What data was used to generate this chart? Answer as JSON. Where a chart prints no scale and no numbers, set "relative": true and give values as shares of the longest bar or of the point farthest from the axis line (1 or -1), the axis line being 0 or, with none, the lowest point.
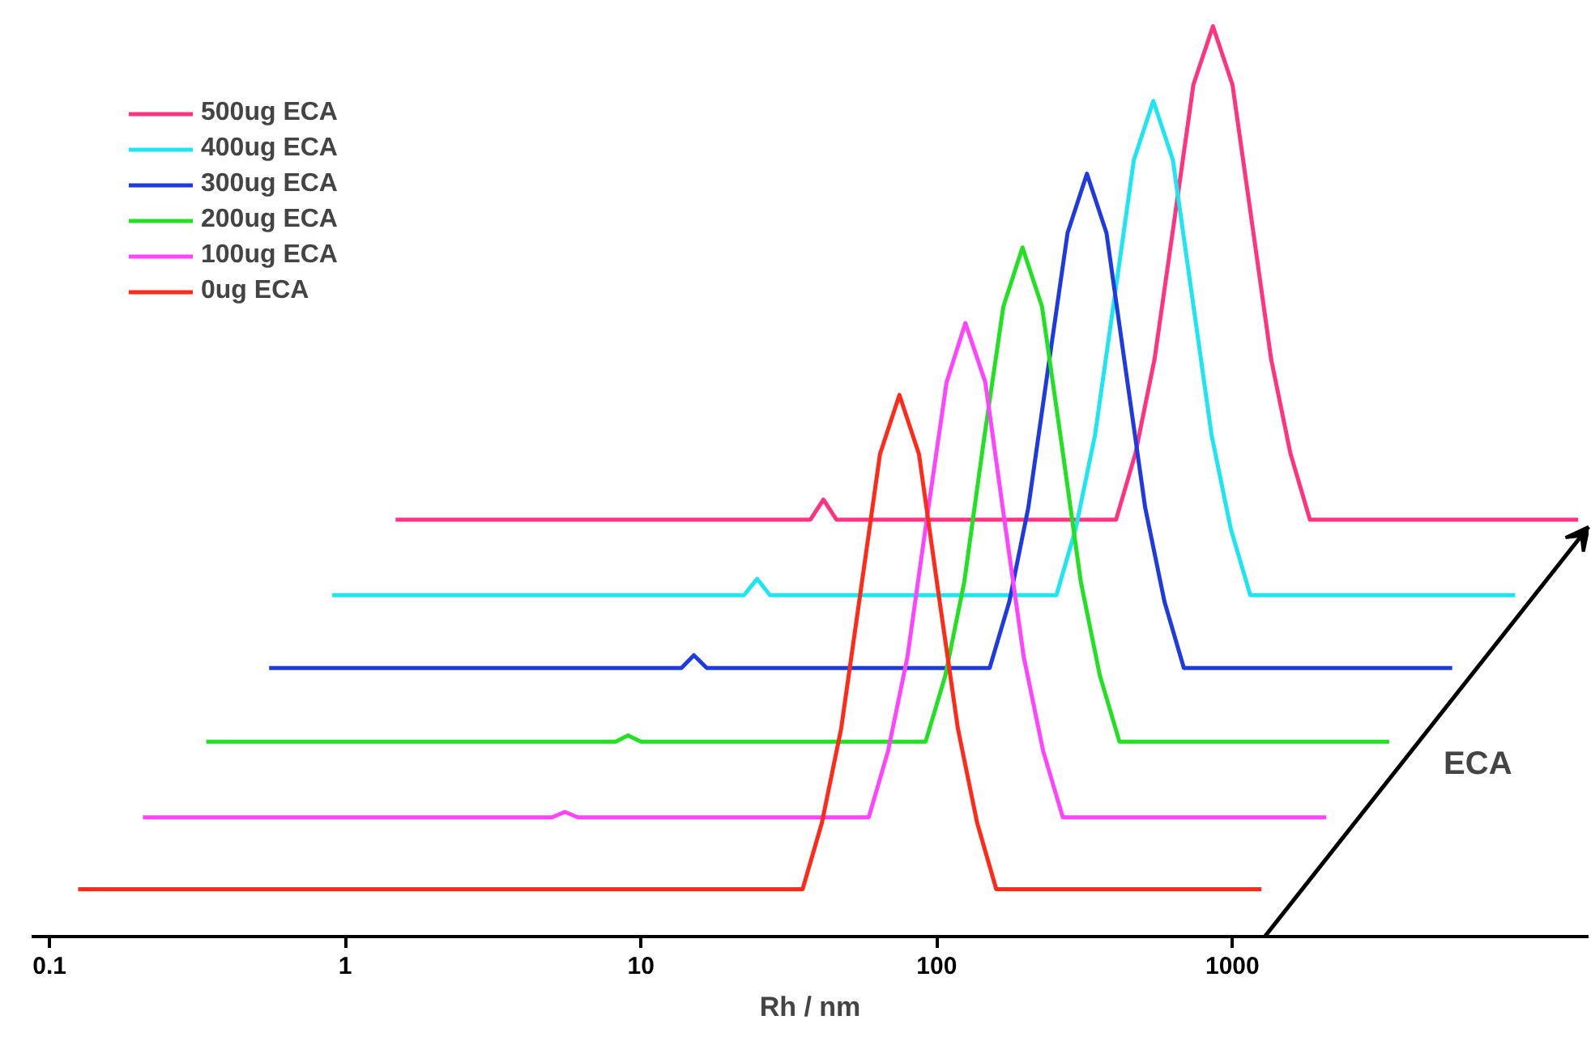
{
  "chart_data": {
    "type": "line",
    "relative": true,
    "xlabel": "Rh / nm",
    "log": "x",
    "xlim": [
      0.087,
      16000
    ],
    "xticks": [
      0.1,
      1,
      10,
      100,
      1000
    ],
    "grid": false,
    "legend": "top left",
    "marker": "none",
    "line_style": "solid",
    "annotations": [
      "ECA"
    ],
    "series": [
      {
        "name": "500ug ECA",
        "color": "#ff3380",
        "x": [
          1.48,
          37.4,
          41.4,
          45.8,
          404,
          470,
          545,
          636,
          738,
          859,
          1000,
          1161,
          1352,
          1570,
          1828,
          14760
        ],
        "values": [
          0.458,
          0.458,
          0.48,
          0.458,
          0.458,
          0.531,
          0.634,
          0.787,
          0.936,
          1.0,
          0.936,
          0.787,
          0.634,
          0.531,
          0.458,
          0.458
        ]
      },
      {
        "name": "400ug ECA",
        "color": "#1ee6f0",
        "x": [
          0.904,
          22.3,
          24.7,
          27.3,
          254,
          295,
          343,
          400,
          464,
          540,
          629,
          730,
          850,
          987,
          1149,
          9036
        ],
        "values": [
          0.375,
          0.375,
          0.393,
          0.375,
          0.375,
          0.448,
          0.551,
          0.704,
          0.853,
          0.918,
          0.853,
          0.704,
          0.551,
          0.448,
          0.375,
          0.375
        ]
      },
      {
        "name": "300ug ECA",
        "color": "#1f3be0",
        "x": [
          0.553,
          13.7,
          15.1,
          16.7,
          151,
          176,
          204,
          238,
          277,
          322,
          375,
          435,
          507,
          589,
          685,
          5534
        ],
        "values": [
          0.295,
          0.295,
          0.309,
          0.295,
          0.295,
          0.368,
          0.471,
          0.624,
          0.773,
          0.838,
          0.773,
          0.624,
          0.471,
          0.368,
          0.295,
          0.295
        ]
      },
      {
        "name": "200ug ECA",
        "color": "#22e022",
        "x": [
          0.339,
          8.2,
          9.04,
          10.0,
          91.7,
          107,
          124,
          144,
          168,
          195,
          227,
          264,
          307,
          356,
          415,
          3388
        ],
        "values": [
          0.214,
          0.214,
          0.221,
          0.214,
          0.214,
          0.287,
          0.39,
          0.543,
          0.692,
          0.757,
          0.692,
          0.543,
          0.39,
          0.287,
          0.214,
          0.214
        ]
      },
      {
        "name": "100ug ECA",
        "color": "#ff44ff",
        "x": [
          0.207,
          5.0,
          5.53,
          6.12,
          58.9,
          68.5,
          79.6,
          92.7,
          108,
          125,
          146,
          169,
          197,
          229,
          267,
          2075
        ],
        "values": [
          0.131,
          0.131,
          0.137,
          0.131,
          0.131,
          0.204,
          0.307,
          0.46,
          0.609,
          0.674,
          0.609,
          0.46,
          0.307,
          0.204,
          0.131,
          0.131
        ]
      },
      {
        "name": "0ug ECA",
        "color": "#ff2a1a",
        "x": [
          0.125,
          35.2,
          40.9,
          47.5,
          55.4,
          64.3,
          74.8,
          87.1,
          101,
          118,
          137,
          159,
          1253
        ],
        "values": [
          0.052,
          0.052,
          0.125,
          0.228,
          0.381,
          0.53,
          0.595,
          0.53,
          0.381,
          0.228,
          0.125,
          0.052,
          0.052
        ]
      }
    ]
  }
}
